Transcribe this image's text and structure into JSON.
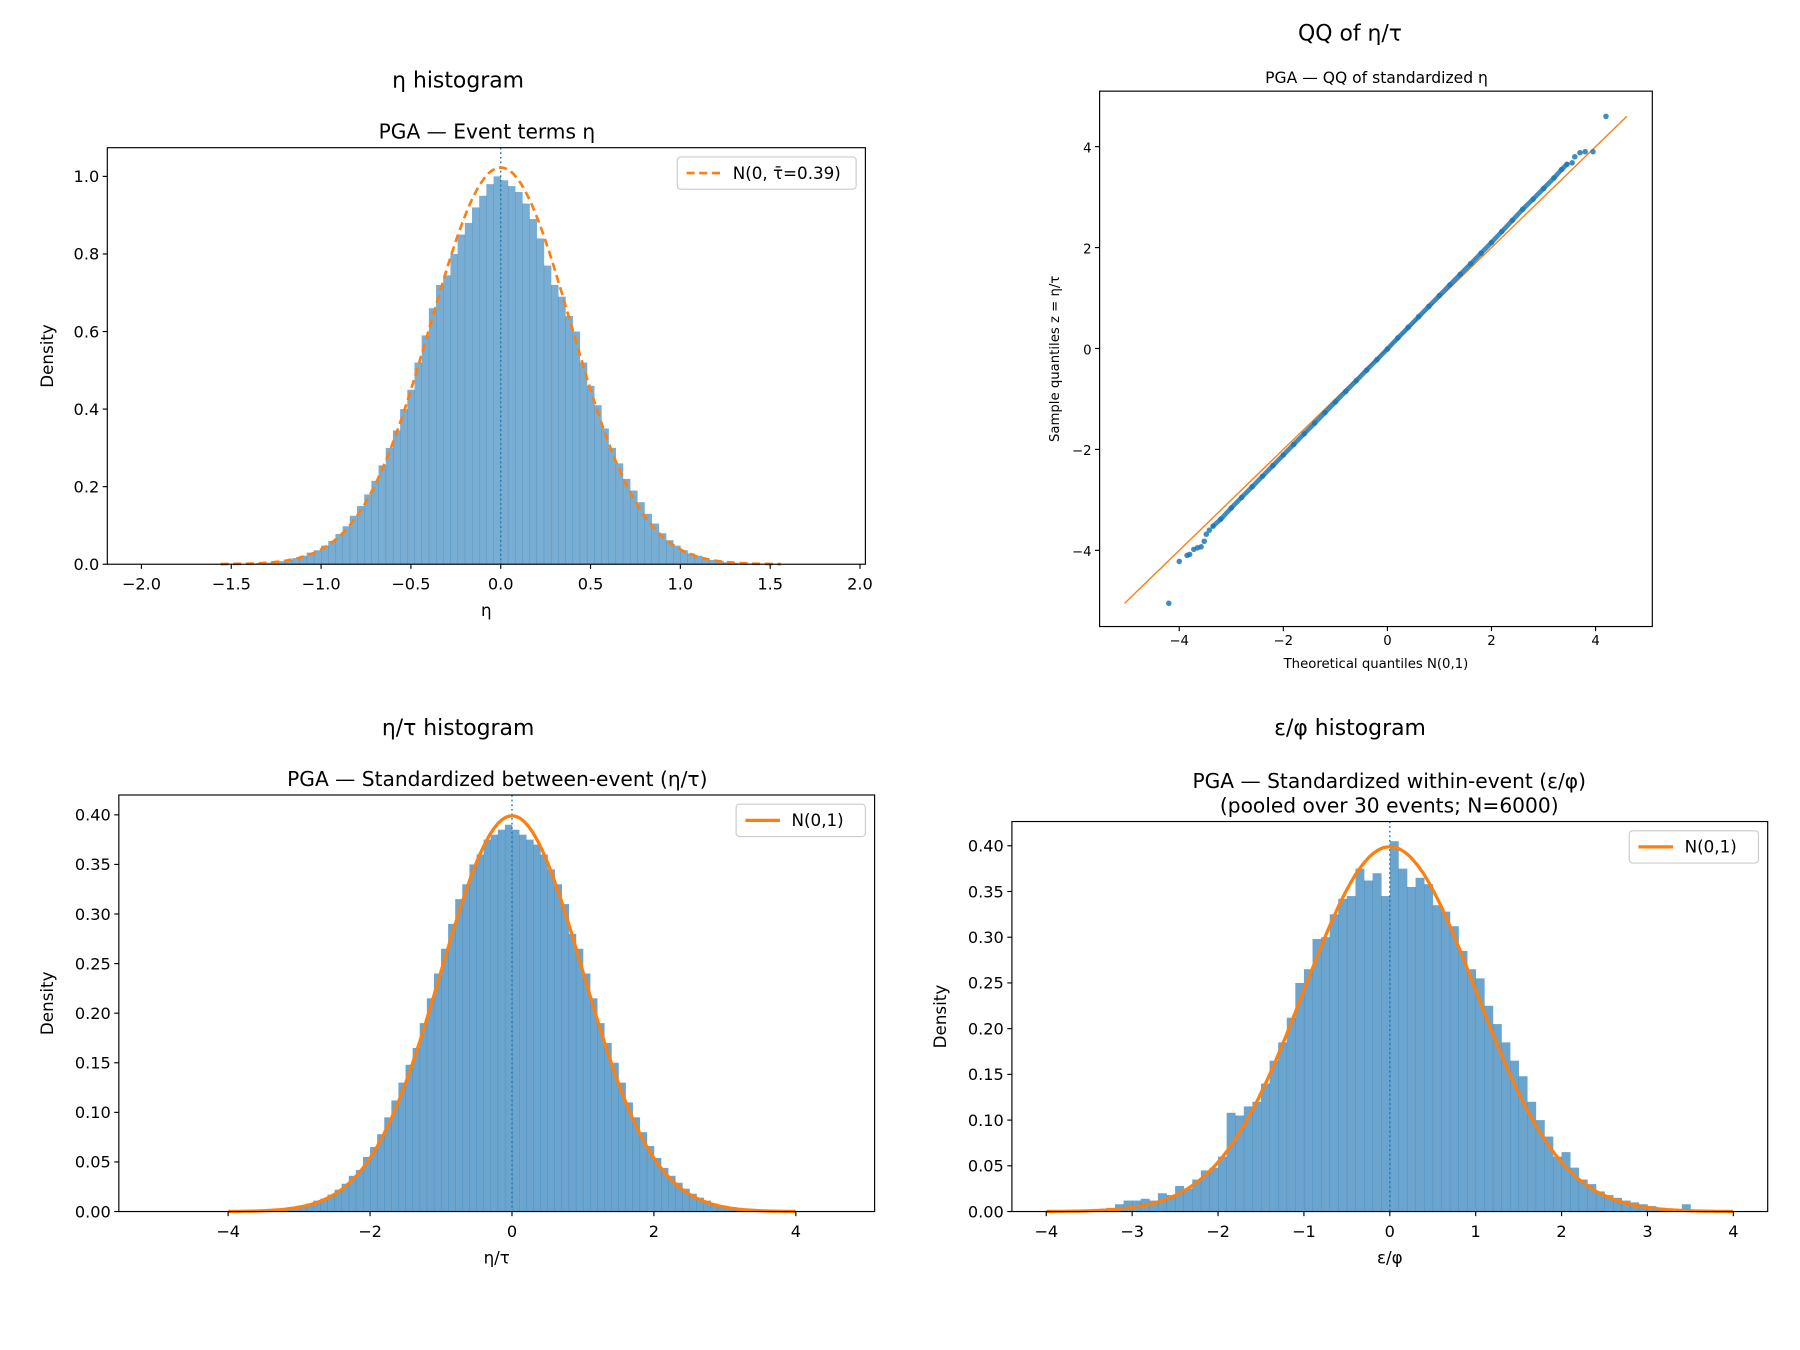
{
  "chart_data": [
    {
      "type": "bar",
      "id": "eta",
      "suptitle": "η histogram",
      "title": "PGA — Event terms η",
      "xlabel": "η",
      "ylabel": "Density",
      "xlim": [
        -2.19,
        2.03
      ],
      "ylim": [
        0,
        1.074
      ],
      "xticks": [
        -2.0,
        -1.5,
        -1.0,
        -0.5,
        0.0,
        0.5,
        1.0,
        1.5,
        2.0
      ],
      "xtick_labels": [
        "−2.0",
        "−1.5",
        "−1.0",
        "−0.5",
        "0.0",
        "0.5",
        "1.0",
        "1.5",
        "2.0"
      ],
      "yticks": [
        0.0,
        0.2,
        0.4,
        0.6,
        0.8,
        1.0
      ],
      "ytick_labels": [
        "0.0",
        "0.2",
        "0.4",
        "0.6",
        "0.8",
        "1.0"
      ],
      "bin_start": -1.4,
      "bin_width": 0.04,
      "values": [
        0.002,
        0.003,
        0.004,
        0.006,
        0.008,
        0.012,
        0.016,
        0.022,
        0.03,
        0.036,
        0.048,
        0.06,
        0.078,
        0.098,
        0.125,
        0.15,
        0.18,
        0.215,
        0.255,
        0.3,
        0.345,
        0.4,
        0.45,
        0.52,
        0.59,
        0.66,
        0.72,
        0.745,
        0.8,
        0.85,
        0.88,
        0.92,
        0.95,
        0.98,
        1.0,
        0.99,
        0.975,
        0.96,
        0.93,
        0.89,
        0.84,
        0.77,
        0.72,
        0.69,
        0.64,
        0.6,
        0.52,
        0.46,
        0.41,
        0.35,
        0.3,
        0.26,
        0.22,
        0.19,
        0.16,
        0.13,
        0.105,
        0.08,
        0.062,
        0.048,
        0.036,
        0.028,
        0.022,
        0.015,
        0.011,
        0.008,
        0.005,
        0.004,
        0.002,
        0.002
      ],
      "curve": {
        "label": "N(0, τ̄=0.39)",
        "mu": 0,
        "sigma": 0.39,
        "range": [
          -1.56,
          1.56
        ],
        "style": "dashed"
      },
      "bar_color": "#1f77b4",
      "curve_color": "#ff7f0e",
      "legend": "top-right"
    },
    {
      "type": "scatter",
      "id": "qq",
      "suptitle": "QQ of η/τ",
      "title": "PGA — QQ of standardized η",
      "xlabel": "Theoretical quantiles N(0,1)",
      "ylabel": "Sample quantiles z = η/τ",
      "xlim": [
        -5.53,
        5.09
      ],
      "ylim": [
        -5.51,
        5.1
      ],
      "xticks": [
        -4,
        -2,
        0,
        2,
        4
      ],
      "xtick_labels": [
        "−4",
        "−2",
        "0",
        "2",
        "4"
      ],
      "yticks": [
        -4,
        -2,
        0,
        2,
        4
      ],
      "ytick_labels": [
        "−4",
        "−2",
        "0",
        "2",
        "4"
      ],
      "reference_line": {
        "from": [
          -5.05,
          -5.05
        ],
        "to": [
          4.6,
          4.6
        ]
      },
      "points": [
        [
          -4.2,
          -5.05
        ],
        [
          -4.0,
          -4.22
        ],
        [
          -3.85,
          -4.1
        ],
        [
          -3.8,
          -4.08
        ],
        [
          -3.72,
          -3.98
        ],
        [
          -3.65,
          -3.95
        ],
        [
          -3.58,
          -3.93
        ],
        [
          -3.52,
          -3.82
        ],
        [
          -3.48,
          -3.68
        ],
        [
          -3.42,
          -3.6
        ],
        [
          -3.35,
          -3.52
        ],
        [
          -3.2,
          -3.38
        ],
        [
          -3.0,
          -3.16
        ],
        [
          -2.8,
          -2.95
        ],
        [
          -2.6,
          -2.74
        ],
        [
          -2.4,
          -2.53
        ],
        [
          -2.2,
          -2.32
        ],
        [
          -2.0,
          -2.11
        ],
        [
          -1.8,
          -1.9
        ],
        [
          -1.6,
          -1.69
        ],
        [
          -1.4,
          -1.48
        ],
        [
          -1.2,
          -1.27
        ],
        [
          -1.0,
          -1.06
        ],
        [
          -0.8,
          -0.85
        ],
        [
          -0.6,
          -0.64
        ],
        [
          -0.4,
          -0.43
        ],
        [
          -0.2,
          -0.22
        ],
        [
          0.0,
          -0.01
        ],
        [
          0.2,
          0.21
        ],
        [
          0.4,
          0.42
        ],
        [
          0.6,
          0.63
        ],
        [
          0.8,
          0.84
        ],
        [
          1.0,
          1.05
        ],
        [
          1.2,
          1.26
        ],
        [
          1.4,
          1.47
        ],
        [
          1.6,
          1.68
        ],
        [
          1.8,
          1.89
        ],
        [
          2.0,
          2.1
        ],
        [
          2.2,
          2.32
        ],
        [
          2.4,
          2.54
        ],
        [
          2.6,
          2.76
        ],
        [
          2.8,
          2.96
        ],
        [
          3.0,
          3.17
        ],
        [
          3.2,
          3.38
        ],
        [
          3.35,
          3.55
        ],
        [
          3.45,
          3.65
        ],
        [
          3.55,
          3.68
        ],
        [
          3.6,
          3.8
        ],
        [
          3.7,
          3.88
        ],
        [
          3.8,
          3.9
        ],
        [
          3.95,
          3.9
        ],
        [
          4.2,
          4.6
        ]
      ],
      "point_color": "#1f77b4",
      "line_color": "#ff7f0e"
    },
    {
      "type": "bar",
      "id": "eta_std",
      "suptitle": "η/τ histogram",
      "title": "PGA — Standardized between-event (η/τ)",
      "xlabel": "η/τ",
      "ylabel": "Density",
      "xlim": [
        -5.54,
        5.11
      ],
      "ylim": [
        0,
        0.42
      ],
      "xticks": [
        -4,
        -2,
        0,
        2,
        4
      ],
      "xtick_labels": [
        "−4",
        "−2",
        "0",
        "2",
        "4"
      ],
      "yticks": [
        0,
        0.05,
        0.1,
        0.15,
        0.2,
        0.25,
        0.3,
        0.35,
        0.4
      ],
      "ytick_labels": [
        "0.00",
        "0.05",
        "0.10",
        "0.15",
        "0.20",
        "0.25",
        "0.30",
        "0.35",
        "0.40"
      ],
      "bin_start": -3.2,
      "bin_width": 0.1,
      "values": [
        0.004,
        0.005,
        0.006,
        0.008,
        0.011,
        0.013,
        0.017,
        0.022,
        0.028,
        0.036,
        0.042,
        0.055,
        0.065,
        0.078,
        0.095,
        0.112,
        0.13,
        0.148,
        0.165,
        0.19,
        0.215,
        0.24,
        0.265,
        0.29,
        0.315,
        0.33,
        0.35,
        0.36,
        0.375,
        0.38,
        0.385,
        0.39,
        0.385,
        0.38,
        0.375,
        0.37,
        0.36,
        0.345,
        0.33,
        0.31,
        0.28,
        0.265,
        0.24,
        0.215,
        0.19,
        0.17,
        0.15,
        0.13,
        0.11,
        0.095,
        0.08,
        0.066,
        0.054,
        0.044,
        0.036,
        0.029,
        0.023,
        0.018,
        0.014,
        0.011,
        0.008,
        0.006,
        0.004,
        0.003
      ],
      "curve": {
        "label": "N(0,1)",
        "mu": 0,
        "sigma": 1,
        "range": [
          -4,
          4
        ],
        "style": "solid"
      },
      "bar_color": "#1f77b4",
      "curve_color": "#ff7f0e",
      "legend": "top-right"
    },
    {
      "type": "bar",
      "id": "eps_std",
      "suptitle": "ε/φ histogram",
      "title": "PGA — Standardized within-event (ε/φ)",
      "title_line2": "(pooled over 30 events; N=6000)",
      "xlabel": "ε/φ",
      "ylabel": "Density",
      "xlim": [
        -4.4,
        4.4
      ],
      "ylim": [
        0,
        0.4265
      ],
      "xticks": [
        -4,
        -3,
        -2,
        -1,
        0,
        1,
        2,
        3,
        4
      ],
      "xtick_labels": [
        "−4",
        "−3",
        "−2",
        "−1",
        "0",
        "1",
        "2",
        "3",
        "4"
      ],
      "yticks": [
        0,
        0.05,
        0.1,
        0.15,
        0.2,
        0.25,
        0.3,
        0.35,
        0.4
      ],
      "ytick_labels": [
        "0.00",
        "0.05",
        "0.10",
        "0.15",
        "0.20",
        "0.25",
        "0.30",
        "0.35",
        "0.40"
      ],
      "bin_start": -3.5,
      "bin_width": 0.1,
      "values": [
        0.002,
        0.002,
        0.004,
        0.008,
        0.012,
        0.012,
        0.014,
        0.012,
        0.02,
        0.018,
        0.028,
        0.025,
        0.035,
        0.045,
        0.048,
        0.06,
        0.108,
        0.105,
        0.115,
        0.12,
        0.14,
        0.165,
        0.185,
        0.212,
        0.25,
        0.265,
        0.298,
        0.3,
        0.325,
        0.342,
        0.345,
        0.375,
        0.362,
        0.37,
        0.345,
        0.405,
        0.375,
        0.355,
        0.365,
        0.358,
        0.335,
        0.328,
        0.312,
        0.285,
        0.265,
        0.255,
        0.225,
        0.205,
        0.185,
        0.165,
        0.148,
        0.12,
        0.1,
        0.082,
        0.06,
        0.065,
        0.048,
        0.035,
        0.03,
        0.022,
        0.018,
        0.015,
        0.012,
        0.01,
        0.008,
        0.006,
        0.004,
        0.003,
        0.002,
        0.008
      ],
      "curve": {
        "label": "N(0,1)",
        "mu": 0,
        "sigma": 1,
        "range": [
          -4,
          4
        ],
        "style": "solid"
      },
      "bar_color": "#1f77b4",
      "curve_color": "#ff7f0e",
      "legend": "top-right"
    }
  ]
}
